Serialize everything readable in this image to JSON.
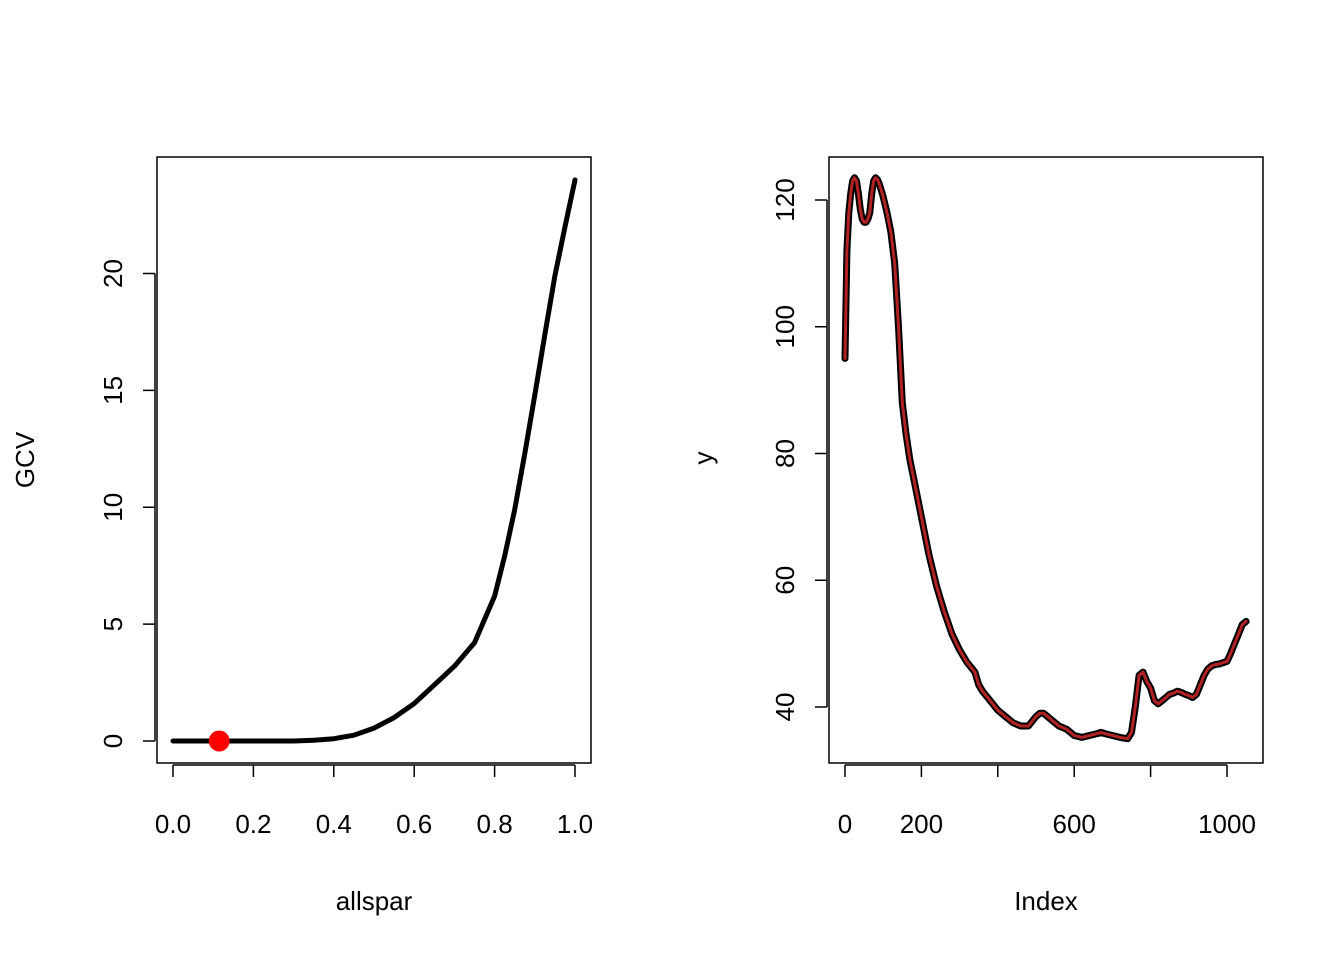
{
  "chart_data": [
    {
      "type": "line",
      "title": "",
      "xlabel": "allspar",
      "ylabel": "GCV",
      "xlim": [
        0.0,
        1.0
      ],
      "ylim": [
        0,
        24
      ],
      "xticks": [
        0.0,
        0.2,
        0.4,
        0.6,
        0.8,
        1.0
      ],
      "xtick_labels": [
        "0.0",
        "0.2",
        "0.4",
        "0.6",
        "0.8",
        "1.0"
      ],
      "yticks": [
        0,
        5,
        10,
        15,
        20
      ],
      "ytick_labels": [
        "0",
        "5",
        "10",
        "15",
        "20"
      ],
      "grid": false,
      "line_color": "#000000",
      "series": [
        {
          "x": [
            0.0,
            0.05,
            0.1,
            0.15,
            0.2,
            0.25,
            0.3,
            0.35,
            0.4,
            0.45,
            0.5,
            0.55,
            0.6,
            0.65,
            0.7,
            0.75,
            0.8,
            0.825,
            0.85,
            0.875,
            0.9,
            0.925,
            0.95,
            0.975,
            1.0
          ],
          "y": [
            0.0,
            0.0,
            0.0,
            0.0,
            0.0,
            0.0,
            0.0,
            0.03,
            0.1,
            0.25,
            0.55,
            1.0,
            1.6,
            2.4,
            3.2,
            4.2,
            6.2,
            7.9,
            9.9,
            12.3,
            14.8,
            17.4,
            19.9,
            22.0,
            24.0
          ]
        }
      ],
      "highlight_point": {
        "x": 0.115,
        "y": 0.0,
        "color": "#ff0000"
      }
    },
    {
      "type": "line",
      "title": "",
      "xlabel": "Index",
      "ylabel": "y",
      "xlim": [
        0,
        1050
      ],
      "ylim": [
        33,
        126
      ],
      "xticks": [
        0,
        200,
        400,
        600,
        800,
        1000
      ],
      "xtick_labels": [
        "0",
        "200",
        "",
        "600",
        "",
        "1000"
      ],
      "yticks": [
        40,
        60,
        80,
        100,
        120
      ],
      "ytick_labels": [
        "40",
        "60",
        "80",
        "100",
        "120"
      ],
      "grid": false,
      "series": [
        {
          "color": "#000000",
          "x": [
            0,
            5,
            10,
            15,
            20,
            25,
            30,
            35,
            40,
            45,
            50,
            55,
            60,
            65,
            70,
            75,
            80,
            85,
            90,
            95,
            100,
            110,
            120,
            130,
            140,
            150,
            160,
            170,
            180,
            200,
            220,
            240,
            260,
            280,
            300,
            320,
            340,
            350,
            360,
            380,
            400,
            420,
            440,
            460,
            480,
            500,
            510,
            520,
            530,
            540,
            560,
            580,
            600,
            620,
            640,
            660,
            670,
            680,
            700,
            720,
            740,
            750,
            760,
            770,
            780,
            790,
            800,
            810,
            820,
            830,
            840,
            850,
            860,
            870,
            880,
            890,
            900,
            910,
            920,
            930,
            940,
            950,
            960,
            970,
            980,
            990,
            1000,
            1010,
            1020,
            1030,
            1040,
            1050
          ],
          "y": [
            95,
            112,
            118,
            121,
            123,
            123.5,
            123,
            121,
            118.5,
            117,
            116.5,
            116.5,
            117,
            118,
            121,
            123,
            123.5,
            123.2,
            122.5,
            121.5,
            120.5,
            118,
            115,
            110,
            100,
            88,
            83,
            79,
            76,
            70,
            64,
            59,
            55,
            51.5,
            49,
            47,
            45.5,
            43.5,
            42.5,
            41,
            39.5,
            38.5,
            37.5,
            37,
            37,
            38.5,
            39,
            39,
            38.5,
            38,
            37,
            36.5,
            35.5,
            35.2,
            35.5,
            35.8,
            36,
            35.8,
            35.5,
            35.2,
            35,
            36,
            40,
            45,
            45.5,
            44,
            43,
            41,
            40.5,
            41,
            41.5,
            42,
            42.2,
            42.5,
            42.3,
            42,
            41.8,
            41.5,
            42,
            43.5,
            45,
            46,
            46.5,
            46.7,
            46.8,
            47,
            47.2,
            48.5,
            50,
            51.5,
            53,
            53.5
          ]
        },
        {
          "color": "#b22222",
          "x": [
            0,
            5,
            10,
            15,
            20,
            25,
            30,
            35,
            40,
            45,
            50,
            55,
            60,
            65,
            70,
            75,
            80,
            85,
            90,
            95,
            100,
            110,
            120,
            130,
            140,
            150,
            160,
            170,
            180,
            200,
            220,
            240,
            260,
            280,
            300,
            320,
            340,
            350,
            360,
            380,
            400,
            420,
            440,
            460,
            480,
            500,
            510,
            520,
            530,
            540,
            560,
            580,
            600,
            620,
            640,
            660,
            670,
            680,
            700,
            720,
            740,
            750,
            760,
            770,
            780,
            790,
            800,
            810,
            820,
            830,
            840,
            850,
            860,
            870,
            880,
            890,
            900,
            910,
            920,
            930,
            940,
            950,
            960,
            970,
            980,
            990,
            1000,
            1010,
            1020,
            1030,
            1040,
            1050
          ],
          "y": [
            95,
            112,
            118,
            121,
            123,
            123.5,
            123,
            121,
            118.5,
            117,
            116.5,
            116.5,
            117,
            118,
            121,
            123,
            123.5,
            123.2,
            122.5,
            121.5,
            120.5,
            118,
            115,
            110,
            100,
            88,
            83,
            79,
            76,
            70,
            64,
            59,
            55,
            51.5,
            49,
            47,
            45.5,
            43.5,
            42.5,
            41,
            39.5,
            38.5,
            37.5,
            37,
            37,
            38.5,
            39,
            39,
            38.5,
            38,
            37,
            36.5,
            35.5,
            35.2,
            35.5,
            35.8,
            36,
            35.8,
            35.5,
            35.2,
            35,
            36,
            40,
            45,
            45.5,
            44,
            43,
            41,
            40.5,
            41,
            41.5,
            42,
            42.2,
            42.5,
            42.3,
            42,
            41.8,
            41.5,
            42,
            43.5,
            45,
            46,
            46.5,
            46.7,
            46.8,
            47,
            47.2,
            48.5,
            50,
            51.5,
            53,
            53.5
          ]
        }
      ]
    }
  ]
}
